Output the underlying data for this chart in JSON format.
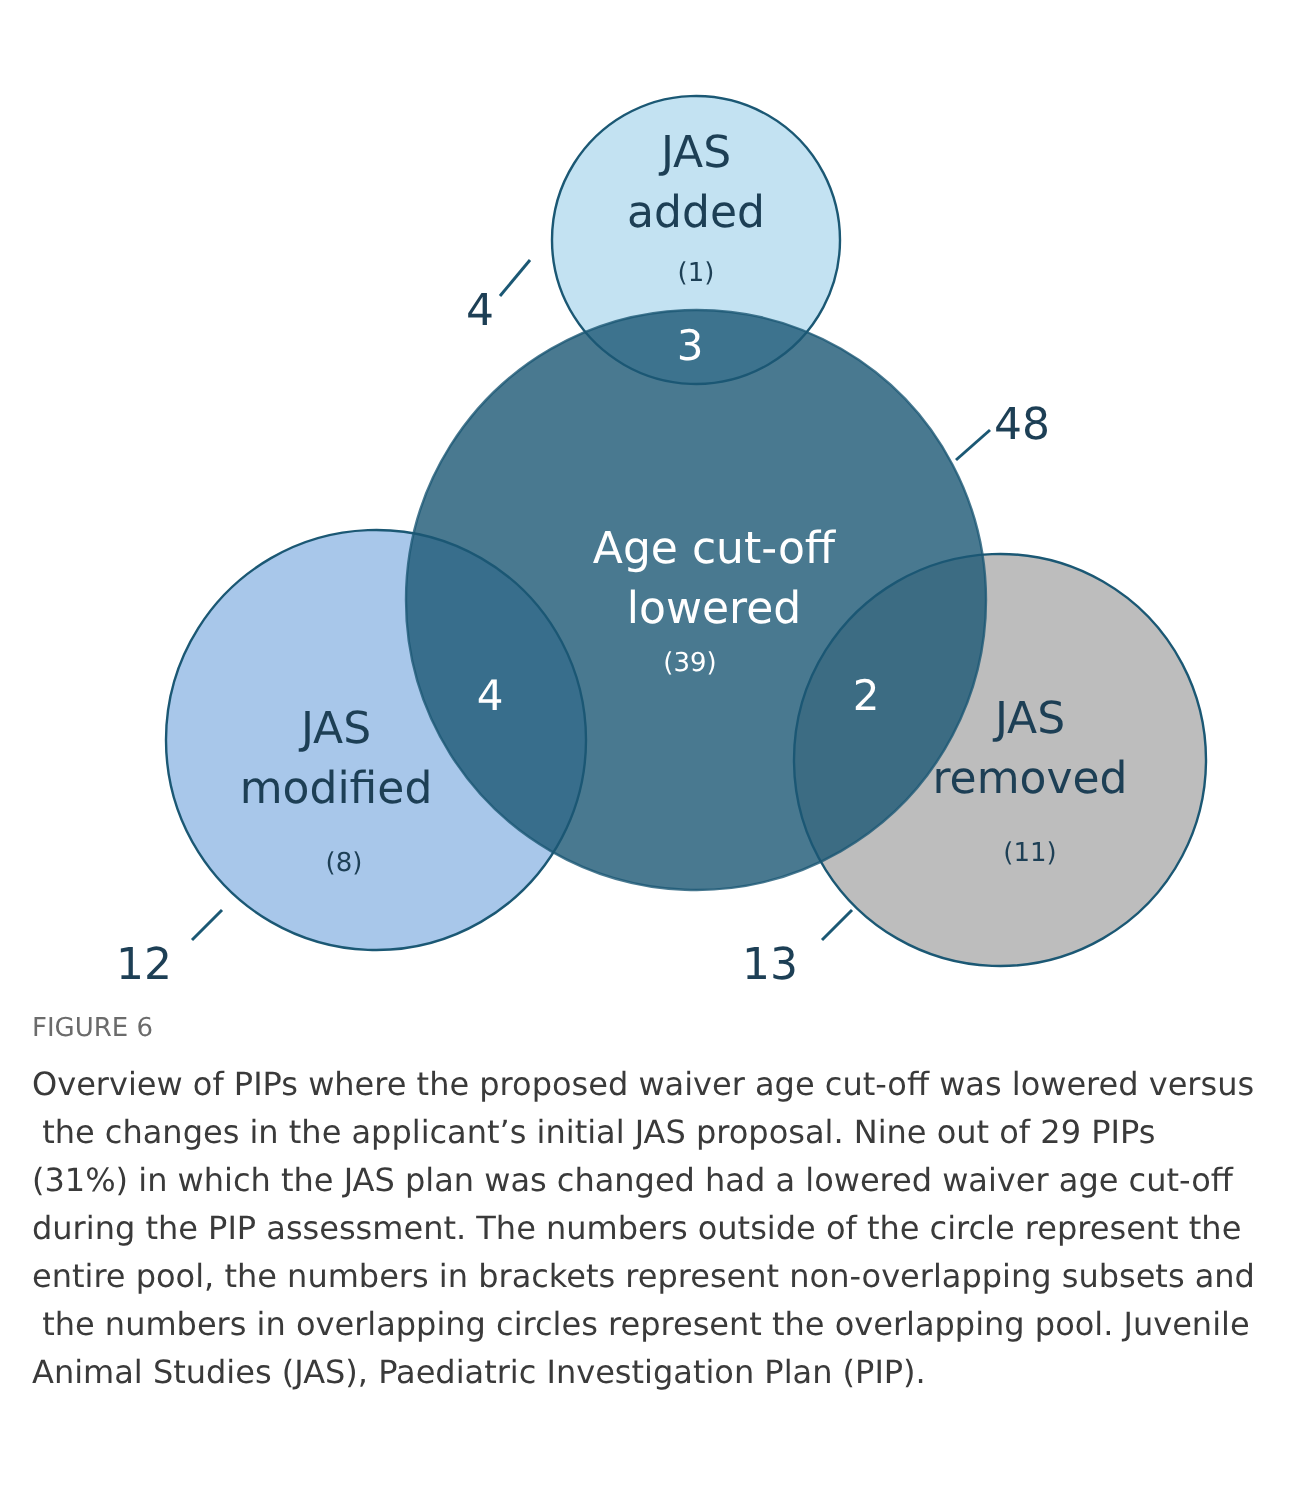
{
  "chart_data": {
    "type": "other",
    "title": "FIGURE 6",
    "categories": [
      "JAS added",
      "Age cut-off lowered",
      "JAS modified",
      "JAS removed"
    ],
    "data_labels": true,
    "series": [
      {
        "values": [
          4,
          48,
          12,
          13
        ]
      },
      {
        "values": [
          1,
          39,
          8,
          11
        ],
        "colors": [
          "#c3e2f2",
          "#1b5874",
          "#a8c7ea",
          "#bdbdbd"
        ],
        "value_labels": [
          "(1)",
          "(39)",
          "(8)",
          "(11)"
        ]
      },
      {
        "values": [
          3,
          null,
          4,
          2
        ]
      }
    ],
    "annotations": [
      "Overview of PIPs where the proposed waiver age cut-off was lowered versus the changes in the applicant’s initial JAS proposal. Nine out of 29 PIPs (31%) in which the JAS plan was changed had a lowered waiver age cut-off during the PIP assessment. The numbers outside of the circle represent the entire pool, the numbers in brackets represent non-overlapping subsets and the numbers in overlapping circles represent the overlapping pool. Juvenile Animal Studies (JAS), Paediatric Investigation Plan (PIP)."
    ]
  }
}
